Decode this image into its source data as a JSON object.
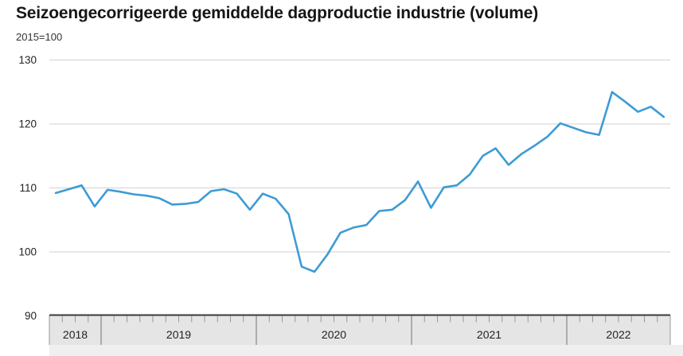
{
  "header": {
    "title": "Seizoengecorrigeerde gemiddelde dagproductie industrie (volume)",
    "subtitle": "2015=100",
    "menu_icon": "hamburger-menu-icon"
  },
  "chart_data": {
    "type": "line",
    "title": "Seizoengecorrigeerde gemiddelde dagproductie industrie (volume)",
    "subtitle": "2015=100",
    "series_name": "Gemiddelde dagproductie industrie (volume), seizoengecorrigeerd",
    "start_month": "2018-09",
    "end_month": "2022-08",
    "x_years": [
      {
        "label": "2018",
        "months": 4
      },
      {
        "label": "2019",
        "months": 12
      },
      {
        "label": "2020",
        "months": 12
      },
      {
        "label": "2021",
        "months": 12
      },
      {
        "label": "2022",
        "months": 8
      }
    ],
    "values": [
      109.2,
      109.8,
      110.4,
      107.1,
      109.7,
      109.4,
      109.0,
      108.8,
      108.4,
      107.4,
      107.5,
      107.8,
      109.5,
      109.8,
      109.1,
      106.6,
      109.1,
      108.3,
      105.9,
      97.7,
      96.9,
      99.6,
      103.0,
      103.8,
      104.2,
      106.4,
      106.6,
      108.1,
      111.0,
      106.9,
      110.1,
      110.4,
      112.1,
      115.0,
      116.2,
      113.6,
      115.3,
      116.6,
      118.0,
      120.1,
      119.4,
      118.7,
      118.3,
      125.0,
      123.5,
      121.9,
      122.7,
      121.1
    ],
    "yticks": [
      90,
      100,
      110,
      120,
      130
    ],
    "ylim": [
      90,
      130
    ],
    "grid": true,
    "legend": "none",
    "line_color": "#3d9bd5"
  },
  "colors": {
    "line": "#3d9bd5",
    "grid": "#d9d9d9",
    "axis_line": "#3a3a3a",
    "band_bg": "#e5e5e5",
    "strip_bg": "#efefef",
    "tick": "#999999",
    "tick_label": "#222222",
    "title_text": "#161616"
  }
}
